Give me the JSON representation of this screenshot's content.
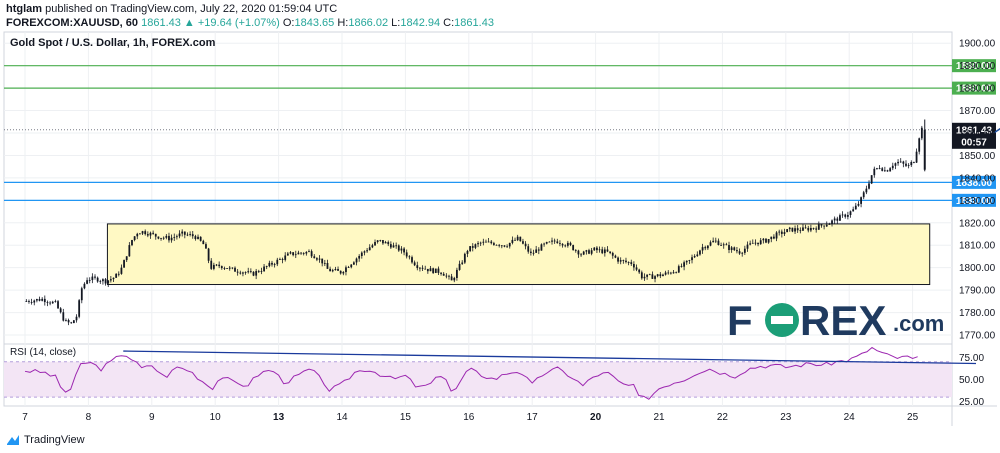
{
  "header": {
    "user": "htglam",
    "published": "published on TradingView.com, July 22, 2020 01:59:04 UTC",
    "symbol": "FOREXCOM:XAUUSD, 60",
    "change": "1861.43 ▲ +19.64 (+1.07%)",
    "o_key": "O:",
    "o_val": "1843.65",
    "h_key": "H:",
    "h_val": "1866.02",
    "l_key": "L:",
    "l_val": "1842.94",
    "c_key": "C:",
    "c_val": "1861.43"
  },
  "chart_title": "Gold Spot / U.S. Dollar, 1h, FOREX.com",
  "rsi_label": "RSI (14, close)",
  "footer": {
    "brand": "TradingView"
  },
  "logo": {
    "left": "F",
    "right": "REX",
    "suffix": ".com"
  },
  "colors": {
    "up": "#131722",
    "resistance": "#4caf50",
    "support": "#2196f3",
    "box_fill": "#fff9c4",
    "arrow": "#1e4e9c",
    "rsi_line": "#9c27b0",
    "rsi_band": "#f3e5f5",
    "trend": "#1a3a9c",
    "logo_green": "#1b9e77",
    "logo_blue": "#1f3a5f"
  },
  "chart_data": {
    "type": "candlestick",
    "title": "Gold Spot / U.S. Dollar, 1h, FOREX.com",
    "ylim": [
      1766,
      1905
    ],
    "y_ticks": [
      1770,
      1780,
      1790,
      1800,
      1810,
      1820,
      1830,
      1840,
      1850,
      1860,
      1870,
      1880,
      1890,
      1900
    ],
    "x_ticks": [
      "7",
      "8",
      "9",
      "10",
      "13",
      "14",
      "15",
      "16",
      "17",
      "20",
      "21",
      "22",
      "23",
      "24",
      "25"
    ],
    "x_ticks_bold": [
      "13",
      "20"
    ],
    "last_price": {
      "value": 1861.43,
      "label": "1861.43",
      "countdown": "00:57"
    },
    "levels": [
      {
        "value": 1890.0,
        "label": "1890.00",
        "kind": "resistance"
      },
      {
        "value": 1880.0,
        "label": "1880.00",
        "kind": "resistance"
      },
      {
        "value": 1838.0,
        "label": "1838.00",
        "kind": "support"
      },
      {
        "value": 1830.0,
        "label": "1830.00",
        "kind": "support"
      }
    ],
    "range_box": {
      "y_top": 1819.5,
      "y_bottom": 1792.5,
      "x_start": 8.3,
      "x_end": 21.27
    },
    "arrow": {
      "from": [
        22.28,
        1860
      ],
      "to": [
        23.75,
        1888
      ]
    },
    "price_path": [
      [
        7.0,
        1785
      ],
      [
        7.3,
        1786
      ],
      [
        7.5,
        1784
      ],
      [
        7.65,
        1776
      ],
      [
        7.75,
        1775
      ],
      [
        7.85,
        1779
      ],
      [
        7.9,
        1790
      ],
      [
        8.0,
        1795
      ],
      [
        8.15,
        1795
      ],
      [
        8.3,
        1794
      ],
      [
        8.45,
        1796
      ],
      [
        8.55,
        1800
      ],
      [
        8.7,
        1812
      ],
      [
        8.8,
        1816
      ],
      [
        8.9,
        1816
      ],
      [
        9.1,
        1814
      ],
      [
        9.3,
        1813
      ],
      [
        9.5,
        1815
      ],
      [
        9.7,
        1814
      ],
      [
        9.85,
        1810
      ],
      [
        9.95,
        1800
      ],
      [
        10.1,
        1801
      ],
      [
        10.3,
        1799
      ],
      [
        10.5,
        1798
      ],
      [
        10.6,
        1797
      ],
      [
        10.8,
        1800
      ],
      [
        11.0,
        1803
      ],
      [
        11.2,
        1806
      ],
      [
        11.5,
        1807
      ],
      [
        11.7,
        1803
      ],
      [
        11.8,
        1799
      ],
      [
        12.0,
        1798
      ],
      [
        12.2,
        1803
      ],
      [
        12.4,
        1808
      ],
      [
        12.6,
        1812
      ],
      [
        12.8,
        1810
      ],
      [
        13.0,
        1807
      ],
      [
        13.2,
        1801
      ],
      [
        13.4,
        1799
      ],
      [
        13.6,
        1798
      ],
      [
        13.75,
        1794
      ],
      [
        13.9,
        1802
      ],
      [
        14.0,
        1808
      ],
      [
        14.2,
        1811
      ],
      [
        14.4,
        1811
      ],
      [
        14.6,
        1810
      ],
      [
        14.8,
        1813
      ],
      [
        15.0,
        1806
      ],
      [
        15.2,
        1810
      ],
      [
        15.4,
        1812
      ],
      [
        15.6,
        1810
      ],
      [
        15.8,
        1806
      ],
      [
        16.0,
        1808
      ],
      [
        16.2,
        1807
      ],
      [
        16.4,
        1803
      ],
      [
        16.6,
        1802
      ],
      [
        16.75,
        1796
      ],
      [
        16.9,
        1796
      ],
      [
        17.1,
        1797
      ],
      [
        17.3,
        1799
      ],
      [
        17.5,
        1803
      ],
      [
        17.7,
        1809
      ],
      [
        17.9,
        1812
      ],
      [
        18.1,
        1809
      ],
      [
        18.3,
        1807
      ],
      [
        18.5,
        1811
      ],
      [
        18.7,
        1812
      ],
      [
        18.9,
        1815
      ],
      [
        19.1,
        1817
      ],
      [
        19.3,
        1817
      ],
      [
        19.5,
        1818
      ],
      [
        19.7,
        1820
      ],
      [
        19.85,
        1822
      ],
      [
        20.0,
        1824
      ],
      [
        20.1,
        1826
      ],
      [
        20.2,
        1830
      ],
      [
        20.3,
        1836
      ],
      [
        20.4,
        1843
      ],
      [
        20.5,
        1845
      ],
      [
        20.6,
        1843
      ],
      [
        20.7,
        1846
      ],
      [
        20.8,
        1847
      ],
      [
        20.95,
        1845
      ],
      [
        21.05,
        1848
      ],
      [
        21.15,
        1862
      ]
    ]
  },
  "rsi_data": {
    "y_ticks": [
      "75.00",
      "50.00",
      "25.00"
    ],
    "y_tick_values": [
      75,
      50,
      25
    ],
    "band": [
      30,
      70
    ],
    "ylim": [
      20,
      90
    ],
    "trend": {
      "from": [
        8.55,
        82
      ],
      "to": [
        22.0,
        68
      ]
    },
    "path": [
      [
        7.0,
        60
      ],
      [
        7.3,
        58
      ],
      [
        7.5,
        52
      ],
      [
        7.6,
        35
      ],
      [
        7.75,
        40
      ],
      [
        7.85,
        66
      ],
      [
        8.0,
        70
      ],
      [
        8.2,
        62
      ],
      [
        8.4,
        72
      ],
      [
        8.55,
        80
      ],
      [
        8.7,
        72
      ],
      [
        8.85,
        62
      ],
      [
        9.0,
        66
      ],
      [
        9.2,
        52
      ],
      [
        9.4,
        64
      ],
      [
        9.6,
        60
      ],
      [
        9.8,
        48
      ],
      [
        9.95,
        40
      ],
      [
        10.1,
        54
      ],
      [
        10.3,
        46
      ],
      [
        10.5,
        43
      ],
      [
        10.7,
        57
      ],
      [
        10.9,
        61
      ],
      [
        11.1,
        46
      ],
      [
        11.3,
        54
      ],
      [
        11.5,
        62
      ],
      [
        11.7,
        48
      ],
      [
        11.8,
        38
      ],
      [
        12.0,
        44
      ],
      [
        12.2,
        58
      ],
      [
        12.4,
        62
      ],
      [
        12.6,
        56
      ],
      [
        12.8,
        50
      ],
      [
        13.0,
        54
      ],
      [
        13.2,
        40
      ],
      [
        13.4,
        45
      ],
      [
        13.6,
        58
      ],
      [
        13.75,
        32
      ],
      [
        13.9,
        52
      ],
      [
        14.0,
        62
      ],
      [
        14.2,
        55
      ],
      [
        14.4,
        50
      ],
      [
        14.6,
        57
      ],
      [
        14.8,
        60
      ],
      [
        15.0,
        44
      ],
      [
        15.2,
        58
      ],
      [
        15.4,
        62
      ],
      [
        15.6,
        54
      ],
      [
        15.8,
        43
      ],
      [
        16.0,
        55
      ],
      [
        16.2,
        57
      ],
      [
        16.4,
        45
      ],
      [
        16.6,
        42
      ],
      [
        16.7,
        28
      ],
      [
        16.85,
        30
      ],
      [
        17.0,
        40
      ],
      [
        17.2,
        46
      ],
      [
        17.4,
        50
      ],
      [
        17.6,
        58
      ],
      [
        17.8,
        62
      ],
      [
        18.0,
        57
      ],
      [
        18.2,
        54
      ],
      [
        18.4,
        62
      ],
      [
        18.6,
        65
      ],
      [
        18.8,
        66
      ],
      [
        19.0,
        64
      ],
      [
        19.2,
        66
      ],
      [
        19.4,
        68
      ],
      [
        19.6,
        66
      ],
      [
        19.8,
        70
      ],
      [
        20.0,
        72
      ],
      [
        20.2,
        78
      ],
      [
        20.35,
        86
      ],
      [
        20.5,
        80
      ],
      [
        20.65,
        76
      ],
      [
        20.8,
        74
      ],
      [
        20.95,
        76
      ],
      [
        21.05,
        70
      ],
      [
        21.15,
        82
      ]
    ]
  }
}
